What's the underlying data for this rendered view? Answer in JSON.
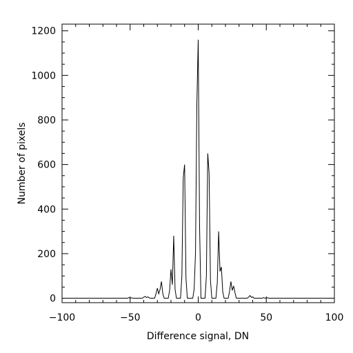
{
  "chart_data": {
    "type": "line",
    "title": "",
    "xlabel": "Difference signal, DN",
    "ylabel": "Number of pixels",
    "xlim": [
      -100,
      100
    ],
    "ylim": [
      -20,
      1230
    ],
    "grid": false,
    "legend": "none",
    "x_ticks": [
      -100,
      -50,
      0,
      50,
      100
    ],
    "x_tick_labels": [
      "−100",
      "−50",
      "0",
      "50",
      "100"
    ],
    "y_ticks": [
      0,
      200,
      400,
      600,
      800,
      1000,
      1200
    ],
    "y_tick_labels": [
      "0",
      "200",
      "400",
      "600",
      "800",
      "1000",
      "1200"
    ],
    "series": [
      {
        "points": [
          [
            -100,
            0
          ],
          [
            -52,
            0
          ],
          [
            -51,
            3
          ],
          [
            -50,
            0
          ],
          [
            -49,
            2
          ],
          [
            -48,
            0
          ],
          [
            -41,
            0
          ],
          [
            -40,
            5
          ],
          [
            -39,
            8
          ],
          [
            -38,
            3
          ],
          [
            -37,
            6
          ],
          [
            -36,
            2
          ],
          [
            -35,
            0
          ],
          [
            -32,
            0
          ],
          [
            -31,
            20
          ],
          [
            -30,
            45
          ],
          [
            -29,
            20
          ],
          [
            -28,
            40
          ],
          [
            -27,
            75
          ],
          [
            -26,
            20
          ],
          [
            -25,
            0
          ],
          [
            -22,
            0
          ],
          [
            -21,
            35
          ],
          [
            -20,
            130
          ],
          [
            -19,
            60
          ],
          [
            -18,
            280
          ],
          [
            -17,
            40
          ],
          [
            -16,
            0
          ],
          [
            -13,
            0
          ],
          [
            -12,
            100
          ],
          [
            -11,
            540
          ],
          [
            -10,
            600
          ],
          [
            -9,
            90
          ],
          [
            -8,
            0
          ],
          [
            -4,
            0
          ],
          [
            -3,
            40
          ],
          [
            -2,
            200
          ],
          [
            -1,
            870
          ],
          [
            0,
            1160
          ],
          [
            1,
            320
          ],
          [
            2,
            0
          ],
          [
            5,
            0
          ],
          [
            6,
            100
          ],
          [
            7,
            650
          ],
          [
            8,
            560
          ],
          [
            9,
            80
          ],
          [
            10,
            0
          ],
          [
            13,
            0
          ],
          [
            14,
            70
          ],
          [
            15,
            300
          ],
          [
            16,
            120
          ],
          [
            17,
            140
          ],
          [
            18,
            30
          ],
          [
            19,
            0
          ],
          [
            22,
            0
          ],
          [
            23,
            30
          ],
          [
            24,
            75
          ],
          [
            25,
            35
          ],
          [
            26,
            55
          ],
          [
            27,
            25
          ],
          [
            28,
            0
          ],
          [
            36,
            0
          ],
          [
            37,
            5
          ],
          [
            38,
            12
          ],
          [
            39,
            4
          ],
          [
            40,
            6
          ],
          [
            41,
            0
          ],
          [
            47,
            0
          ],
          [
            48,
            3
          ],
          [
            49,
            0
          ],
          [
            51,
            2
          ],
          [
            52,
            0
          ],
          [
            100,
            0
          ]
        ]
      }
    ]
  }
}
